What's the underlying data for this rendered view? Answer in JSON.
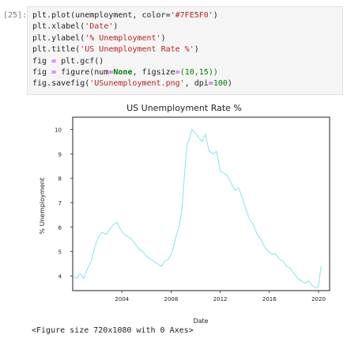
{
  "cell": {
    "prompt": "[25]:",
    "code_lines": [
      [
        {
          "t": "plt"
        },
        {
          "t": ".plot(unemployment, color="
        },
        {
          "t": "'#7FE5F0'",
          "c": "st"
        },
        {
          "t": ")"
        }
      ],
      [
        {
          "t": "plt"
        },
        {
          "t": ".xlabel("
        },
        {
          "t": "'Date'",
          "c": "st"
        },
        {
          "t": ")"
        }
      ],
      [
        {
          "t": "plt"
        },
        {
          "t": ".ylabel("
        },
        {
          "t": "'% Unemployment'",
          "c": "st"
        },
        {
          "t": ")"
        }
      ],
      [
        {
          "t": "plt"
        },
        {
          "t": ".title("
        },
        {
          "t": "'US Unemployment Rate %'",
          "c": "st"
        },
        {
          "t": ")"
        }
      ],
      [
        {
          "t": "fig "
        },
        {
          "t": "=",
          "c": "op"
        },
        {
          "t": " plt.gcf()"
        }
      ],
      [
        {
          "t": "fig "
        },
        {
          "t": "=",
          "c": "op"
        },
        {
          "t": " figure(num"
        },
        {
          "t": "=",
          "c": "op"
        },
        {
          "t": "None",
          "c": "kw"
        },
        {
          "t": ", figsize"
        },
        {
          "t": "=",
          "c": "op"
        },
        {
          "t": "(10,15))",
          "c": "nm"
        }
      ],
      [
        {
          "t": "fig"
        },
        {
          "t": ".savefig("
        },
        {
          "t": "'USunemployment.png'",
          "c": "st"
        },
        {
          "t": ", dpi"
        },
        {
          "t": "=",
          "c": "op"
        },
        {
          "t": "100",
          "c": "nm"
        },
        {
          "t": ")"
        }
      ]
    ],
    "output_text": "<Figure size 720x1080 with 0 Axes>"
  },
  "chart_data": {
    "type": "line",
    "title": "US Unemployment Rate %",
    "xlabel": "Date",
    "ylabel": "% Unemployment",
    "xlim": [
      2000.0,
      2020.9
    ],
    "ylim": [
      3.4,
      10.5
    ],
    "xticks": [
      2004,
      2008,
      2012,
      2016,
      2020
    ],
    "yticks": [
      4,
      5,
      6,
      7,
      8,
      9,
      10
    ],
    "grid": false,
    "line_color": "#7FE5F0",
    "series": [
      {
        "x": [
          2000.0,
          2000.3,
          2000.6,
          2000.9,
          2001.2,
          2001.5,
          2001.8,
          2002.1,
          2002.4,
          2002.7,
          2003.0,
          2003.3,
          2003.6,
          2003.9,
          2004.2,
          2004.5,
          2004.8,
          2005.1,
          2005.4,
          2005.7,
          2006.0,
          2006.3,
          2006.6,
          2006.9,
          2007.2,
          2007.5,
          2007.8,
          2008.1,
          2008.4,
          2008.7,
          2008.9,
          2009.1,
          2009.3,
          2009.5,
          2009.7,
          2009.9,
          2010.2,
          2010.5,
          2010.8,
          2011.1,
          2011.4,
          2011.7,
          2012.0,
          2012.3,
          2012.6,
          2012.9,
          2013.2,
          2013.5,
          2013.8,
          2014.1,
          2014.4,
          2014.7,
          2015.0,
          2015.3,
          2015.6,
          2015.9,
          2016.2,
          2016.5,
          2016.8,
          2017.1,
          2017.4,
          2017.7,
          2018.0,
          2018.3,
          2018.6,
          2018.9,
          2019.2,
          2019.5,
          2019.8,
          2020.0,
          2020.2
        ],
        "y": [
          4.0,
          3.9,
          4.1,
          3.9,
          4.3,
          4.6,
          5.2,
          5.6,
          5.8,
          5.7,
          5.9,
          6.1,
          6.2,
          5.9,
          5.7,
          5.6,
          5.5,
          5.3,
          5.1,
          5.0,
          4.8,
          4.7,
          4.6,
          4.5,
          4.4,
          4.6,
          4.7,
          5.0,
          5.6,
          6.1,
          6.8,
          8.2,
          9.4,
          9.6,
          10.0,
          9.9,
          9.7,
          9.5,
          9.8,
          9.1,
          9.0,
          9.1,
          8.3,
          8.2,
          8.1,
          7.8,
          7.5,
          7.6,
          7.2,
          6.7,
          6.3,
          6.1,
          5.7,
          5.5,
          5.2,
          5.0,
          4.9,
          4.9,
          4.7,
          4.6,
          4.4,
          4.3,
          4.1,
          3.9,
          3.8,
          3.7,
          3.8,
          3.6,
          3.5,
          3.6,
          4.4
        ]
      }
    ]
  }
}
